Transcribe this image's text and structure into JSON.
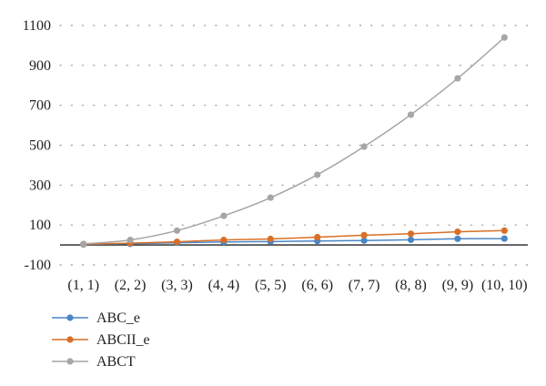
{
  "chart_data": {
    "type": "line",
    "categories": [
      "(1, 1)",
      "(2, 2)",
      "(3, 3)",
      "(4, 4)",
      "(5, 5)",
      "(6, 6)",
      "(7, 7)",
      "(8, 8)",
      "(9, 9)",
      "(10, 10)"
    ],
    "ylim": [
      -100,
      1100
    ],
    "yticks": [
      -100,
      100,
      300,
      500,
      700,
      900,
      1100
    ],
    "grid": true,
    "legend_position": "bottom-left",
    "series": [
      {
        "name": "ABC_e",
        "color": "#4a86c5",
        "values": [
          3,
          6,
          11,
          15,
          17,
          20,
          22,
          26,
          31,
          32
        ]
      },
      {
        "name": "ABCII_e",
        "color": "#d96f26",
        "values": [
          4,
          9,
          16,
          25,
          30,
          39,
          49,
          56,
          66,
          72
        ]
      },
      {
        "name": "ABCT",
        "color": "#a6a6a6",
        "values": [
          5,
          25,
          72,
          146,
          237,
          352,
          493,
          653,
          835,
          1040
        ]
      }
    ]
  }
}
